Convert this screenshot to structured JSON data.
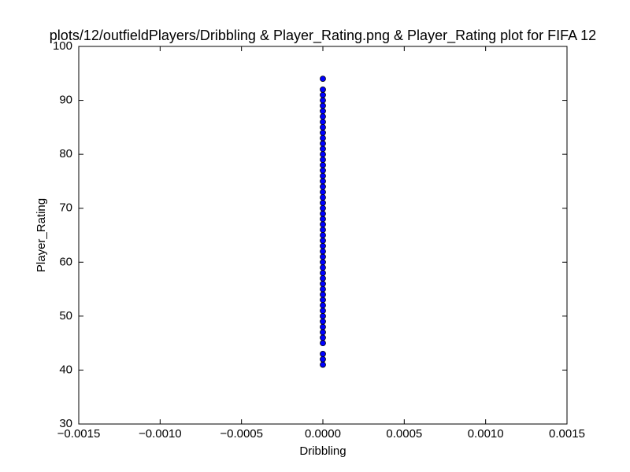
{
  "chart_data": {
    "type": "scatter",
    "title": "plots/12/outfieldPlayers/Dribbling & Player_Rating.png & Player_Rating plot for FIFA 12",
    "xlabel": "Dribbling",
    "ylabel": "Player_Rating",
    "x": [
      0,
      0,
      0,
      0,
      0,
      0,
      0,
      0,
      0,
      0,
      0,
      0,
      0,
      0,
      0,
      0,
      0,
      0,
      0,
      0,
      0,
      0,
      0,
      0,
      0,
      0,
      0,
      0,
      0,
      0,
      0,
      0,
      0,
      0,
      0,
      0,
      0,
      0,
      0,
      0,
      0,
      0,
      0,
      0,
      0,
      0,
      0,
      0,
      0,
      0,
      0,
      0
    ],
    "values": [
      41,
      42,
      43,
      45,
      46,
      47,
      48,
      49,
      50,
      51,
      52,
      53,
      54,
      55,
      56,
      57,
      58,
      59,
      60,
      61,
      62,
      63,
      64,
      65,
      66,
      67,
      68,
      69,
      70,
      71,
      72,
      73,
      74,
      75,
      76,
      77,
      78,
      79,
      80,
      81,
      82,
      83,
      84,
      85,
      86,
      87,
      88,
      89,
      90,
      91,
      92,
      94
    ],
    "color": "#0000ff",
    "xlim": [
      -0.0015,
      0.0015
    ],
    "xticks": [
      {
        "value": -0.0015,
        "label": "−0.0015"
      },
      {
        "value": -0.001,
        "label": "−0.0010"
      },
      {
        "value": -0.0005,
        "label": "−0.0005"
      },
      {
        "value": 0,
        "label": "0.0000"
      },
      {
        "value": 0.0005,
        "label": "0.0005"
      },
      {
        "value": 0.001,
        "label": "0.0010"
      },
      {
        "value": 0.0015,
        "label": "0.0015"
      }
    ],
    "ylim": [
      30,
      100
    ],
    "yticks": [
      30,
      40,
      50,
      60,
      70,
      80,
      90,
      100
    ]
  }
}
